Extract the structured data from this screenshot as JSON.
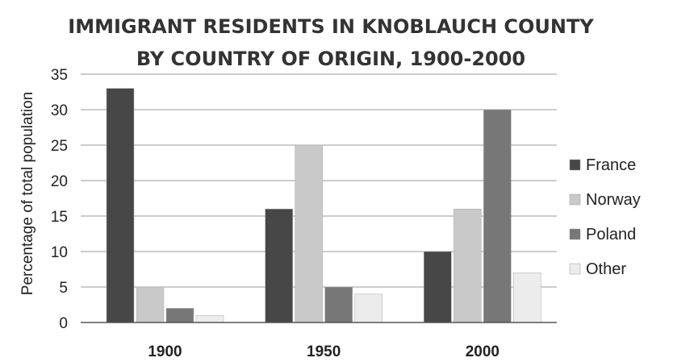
{
  "chart_data": {
    "type": "bar",
    "title_lines": [
      "IMMIGRANT RESIDENTS IN KNOBLAUCH COUNTY",
      "BY COUNTRY OF ORIGIN, 1900-2000"
    ],
    "categories": [
      "1900",
      "1950",
      "2000"
    ],
    "series": [
      {
        "name": "France",
        "color": "#474747",
        "values": [
          33,
          16,
          10
        ]
      },
      {
        "name": "Norway",
        "color": "#c9c9c9",
        "values": [
          5,
          25,
          16
        ]
      },
      {
        "name": "Poland",
        "color": "#777777",
        "values": [
          2,
          5,
          30
        ]
      },
      {
        "name": "Other",
        "color": "#ececec",
        "values": [
          1,
          4,
          7
        ]
      }
    ],
    "ylabel": "Percentage of total population",
    "ylim": [
      0,
      35
    ],
    "yticks": [
      0,
      5,
      10,
      15,
      20,
      25,
      30,
      35
    ],
    "grid": true,
    "legend": "right"
  }
}
